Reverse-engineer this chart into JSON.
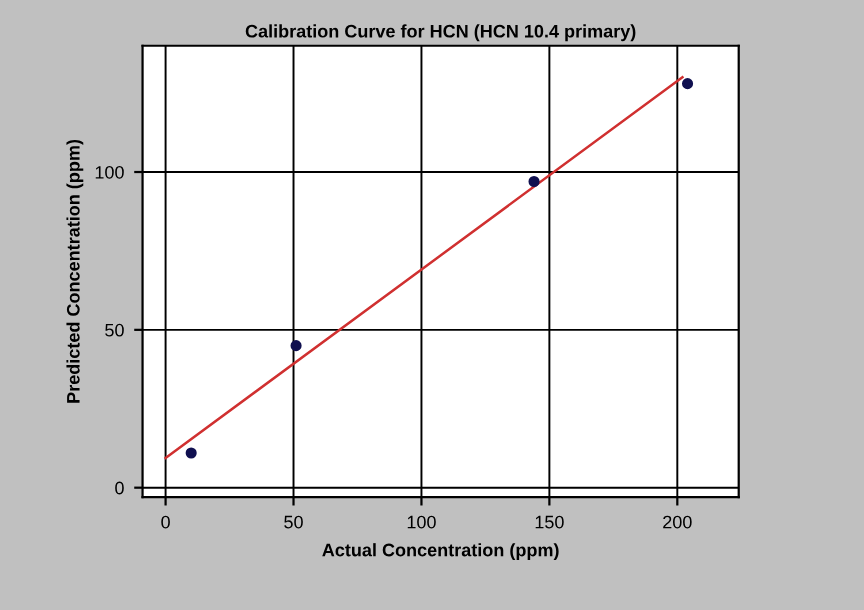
{
  "chart_data": {
    "type": "scatter",
    "title": "Calibration Curve for HCN (HCN 10.4 primary)",
    "xlabel": "Actual Concentration (ppm)",
    "ylabel": "Predicted Concentration (ppm)",
    "series": [
      {
        "color": "#101050",
        "x": [
          10,
          51,
          144,
          204
        ],
        "values": [
          11,
          45,
          97,
          128
        ],
        "marker": "circle"
      },
      {
        "type": "line",
        "color": "#d03030",
        "x": [
          0,
          202
        ],
        "values": [
          9.4,
          130
        ],
        "marker": "none",
        "line_style": "solid"
      }
    ],
    "xlim": [
      -9,
      224
    ],
    "ylim": [
      -3,
      140
    ],
    "xticks": [
      0,
      50,
      100,
      150,
      200
    ],
    "yticks": [
      0,
      50,
      100
    ],
    "grid": true,
    "legend": false
  }
}
